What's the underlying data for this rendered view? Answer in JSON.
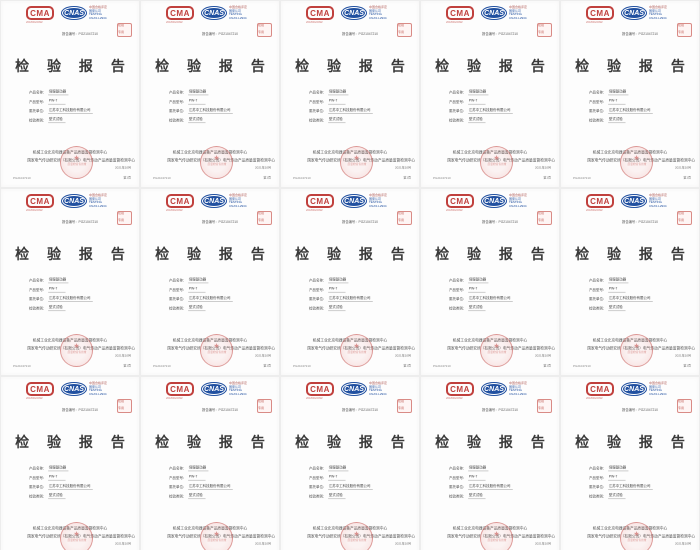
{
  "grid": {
    "cols": 5,
    "rows": 3,
    "count": 15
  },
  "colors": {
    "cma_red": "#c0403d",
    "cnas_blue": "#2150a0",
    "seal_red": "#c5524e",
    "title_gray": "#3a3a3a"
  },
  "page": {
    "cma": {
      "mark": "CMA",
      "sub": "2018002209Z"
    },
    "cnas": {
      "mark": "CNAS",
      "lines": [
        "中国合格评定",
        "国家认可",
        "TESTING",
        "CNAS L2934"
      ]
    },
    "serial_stamp": {
      "line1": "检验",
      "line2": "专用"
    },
    "report_no": "报告编号：PG21047210",
    "title": "检 验 报 告",
    "fields": [
      {
        "label": "产品名称：",
        "value": "伺服驱动器"
      },
      {
        "label": "产品型号：",
        "value": "PW-7"
      },
      {
        "label": "委托单位：",
        "value": "江苏中工科技股份有限公司"
      },
      {
        "label": "检验类别：",
        "value": "型式试验"
      }
    ],
    "org_line1": "机械工业北京电器设备产品质量监督检测中心",
    "org_line2": "国家电气传动研究所（有限公司）电气传动产品质量监督检测中心",
    "seal": {
      "star": "★",
      "text": "质量检验专用章"
    },
    "foot_left": "PG21047210",
    "foot_right_date": "2021年10月",
    "foot_right_page": "第1页"
  }
}
